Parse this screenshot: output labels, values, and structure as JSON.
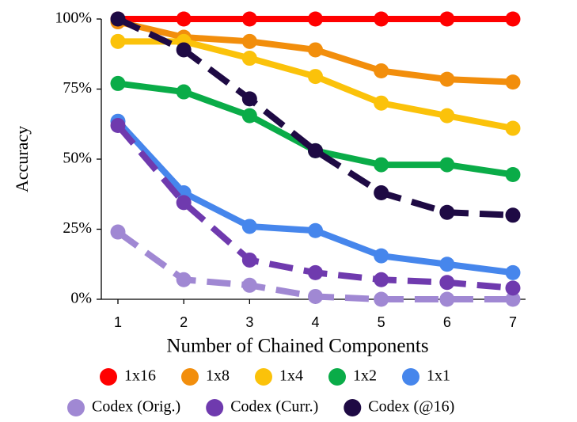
{
  "chart_data": {
    "type": "line",
    "xlabel": "Number of Chained Components",
    "ylabel": "Accuracy",
    "x": [
      1,
      2,
      3,
      4,
      5,
      6,
      7
    ],
    "xlim": [
      1,
      7
    ],
    "ylim": [
      0,
      100
    ],
    "yticks": [
      {
        "value": 0,
        "label": "0%"
      },
      {
        "value": 25,
        "label": "25%"
      },
      {
        "value": 50,
        "label": "50%"
      },
      {
        "value": 75,
        "label": "75%"
      },
      {
        "value": 100,
        "label": "100%"
      }
    ],
    "xticks": [
      "1",
      "2",
      "3",
      "4",
      "5",
      "6",
      "7"
    ],
    "grid": false,
    "legend_position": "bottom",
    "series": [
      {
        "name": "1x16",
        "color": "#ff0000",
        "dashed": false,
        "values": [
          100,
          100,
          100,
          100,
          100,
          100,
          100
        ]
      },
      {
        "name": "1x8",
        "color": "#f28e0c",
        "dashed": false,
        "values": [
          99,
          93.5,
          92,
          89,
          81.5,
          78.5,
          77.5
        ]
      },
      {
        "name": "1x4",
        "color": "#fbc20a",
        "dashed": false,
        "values": [
          92,
          92,
          86,
          79.5,
          70,
          65.5,
          61
        ]
      },
      {
        "name": "1x2",
        "color": "#0aac48",
        "dashed": false,
        "values": [
          77,
          74,
          65.5,
          53,
          48,
          48,
          44.5
        ]
      },
      {
        "name": "1x1",
        "color": "#4686ec",
        "dashed": false,
        "values": [
          63.5,
          38,
          26,
          24.5,
          15.5,
          12.5,
          9.5
        ]
      },
      {
        "name": "Codex (Orig.)",
        "color": "#a088d3",
        "dashed": true,
        "values": [
          24,
          7,
          5,
          1,
          0,
          0,
          0
        ]
      },
      {
        "name": "Codex (Curr.)",
        "color": "#6f3aae",
        "dashed": true,
        "values": [
          62,
          34.5,
          14,
          9.5,
          7,
          6,
          4
        ]
      },
      {
        "name": "Codex (@16)",
        "color": "#1e0a44",
        "dashed": true,
        "values": [
          100,
          89,
          71.5,
          53,
          38,
          31,
          30
        ]
      }
    ],
    "legend_rows": [
      [
        "1x16",
        "1x8",
        "1x4",
        "1x2",
        "1x1"
      ],
      [
        "Codex (Orig.)",
        "Codex (Curr.)",
        "Codex (@16)"
      ]
    ]
  }
}
